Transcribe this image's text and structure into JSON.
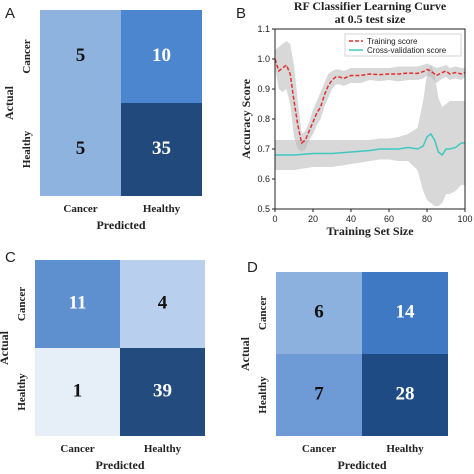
{
  "chart_data": [
    {
      "panel": "A",
      "type": "heatmap",
      "row_labels": [
        "Cancer",
        "Healthy"
      ],
      "col_labels": [
        "Cancer",
        "Healthy"
      ],
      "values": [
        [
          5,
          10
        ],
        [
          5,
          35
        ]
      ],
      "xlabel": "Predicted",
      "ylabel": "Actual",
      "colors": [
        [
          "#8fb3df",
          "#4c86cf"
        ],
        [
          "#8fb3df",
          "#22497c"
        ]
      ]
    },
    {
      "panel": "B",
      "type": "line",
      "title_line1": "RF Classifier Learning Curve",
      "title_line2": "at 0.5 test size",
      "xlabel": "Training Set Size",
      "ylabel": "Accuracy Score",
      "xlim": [
        0,
        100
      ],
      "ylim": [
        0.5,
        1.1
      ],
      "xticks": [
        "0",
        "20",
        "40",
        "60",
        "80",
        "100"
      ],
      "yticks": [
        "0.5",
        "0.6",
        "0.7",
        "0.8",
        "0.9",
        "1.0",
        "1.1"
      ],
      "legend_position": "top-right",
      "series": [
        {
          "name": "Training score",
          "color": "#e03030",
          "style": "dashed",
          "x": [
            0,
            2,
            4,
            6,
            8,
            10,
            12,
            14,
            16,
            18,
            20,
            22,
            24,
            26,
            28,
            30,
            32,
            34,
            36,
            38,
            40,
            45,
            50,
            55,
            60,
            65,
            70,
            75,
            78,
            80,
            82,
            85,
            88,
            90,
            92,
            95,
            98,
            100
          ],
          "y": [
            1.0,
            0.96,
            0.97,
            0.98,
            0.95,
            0.86,
            0.78,
            0.72,
            0.73,
            0.76,
            0.79,
            0.82,
            0.84,
            0.88,
            0.91,
            0.93,
            0.94,
            0.94,
            0.935,
            0.94,
            0.945,
            0.945,
            0.95,
            0.948,
            0.95,
            0.95,
            0.953,
            0.952,
            0.958,
            0.965,
            0.96,
            0.945,
            0.955,
            0.96,
            0.95,
            0.955,
            0.95,
            0.955
          ],
          "band_upper": [
            1.03,
            1.04,
            1.05,
            1.06,
            1.05,
            0.98,
            0.86,
            0.75,
            0.76,
            0.79,
            0.83,
            0.86,
            0.89,
            0.92,
            0.95,
            0.96,
            0.965,
            0.965,
            0.96,
            0.965,
            0.97,
            0.97,
            0.97,
            0.97,
            0.97,
            0.975,
            0.975,
            0.975,
            0.98,
            0.985,
            0.98,
            0.97,
            0.975,
            0.98,
            0.97,
            0.975,
            0.97,
            0.97
          ],
          "band_lower": [
            0.97,
            0.9,
            0.89,
            0.9,
            0.85,
            0.74,
            0.7,
            0.69,
            0.7,
            0.73,
            0.75,
            0.78,
            0.8,
            0.84,
            0.87,
            0.9,
            0.915,
            0.915,
            0.91,
            0.915,
            0.92,
            0.92,
            0.93,
            0.926,
            0.93,
            0.925,
            0.93,
            0.93,
            0.935,
            0.945,
            0.94,
            0.92,
            0.935,
            0.94,
            0.93,
            0.935,
            0.93,
            0.94
          ]
        },
        {
          "name": "Cross-validation score",
          "color": "#40c8c0",
          "style": "solid",
          "x": [
            0,
            10,
            20,
            30,
            40,
            50,
            55,
            60,
            65,
            70,
            75,
            78,
            80,
            82,
            84,
            86,
            88,
            90,
            92,
            95,
            98,
            100
          ],
          "y": [
            0.68,
            0.68,
            0.685,
            0.685,
            0.69,
            0.695,
            0.7,
            0.7,
            0.7,
            0.705,
            0.7,
            0.71,
            0.74,
            0.75,
            0.73,
            0.69,
            0.68,
            0.7,
            0.7,
            0.705,
            0.72,
            0.72
          ],
          "band_upper": [
            0.73,
            0.73,
            0.73,
            0.73,
            0.73,
            0.73,
            0.735,
            0.735,
            0.74,
            0.75,
            0.77,
            0.86,
            0.95,
            0.98,
            0.95,
            0.87,
            0.84,
            0.85,
            0.86,
            0.86,
            0.86,
            0.86
          ],
          "band_lower": [
            0.63,
            0.63,
            0.64,
            0.64,
            0.65,
            0.66,
            0.665,
            0.665,
            0.66,
            0.66,
            0.63,
            0.56,
            0.53,
            0.52,
            0.51,
            0.51,
            0.52,
            0.55,
            0.55,
            0.56,
            0.58,
            0.58
          ]
        }
      ]
    },
    {
      "panel": "C",
      "type": "heatmap",
      "row_labels": [
        "Cancer",
        "Healthy"
      ],
      "col_labels": [
        "Cancer",
        "Healthy"
      ],
      "values": [
        [
          11,
          4
        ],
        [
          1,
          39
        ]
      ],
      "xlabel": "Predicted",
      "ylabel": "Actual",
      "colors": [
        [
          "#5e8fcf",
          "#b8d0ee"
        ],
        [
          "#e6eef8",
          "#234b7e"
        ]
      ]
    },
    {
      "panel": "D",
      "type": "heatmap",
      "row_labels": [
        "Cancer",
        "Healthy"
      ],
      "col_labels": [
        "Cancer",
        "Healthy"
      ],
      "values": [
        [
          6,
          14
        ],
        [
          7,
          28
        ]
      ],
      "xlabel": "Predicted",
      "ylabel": "Actual",
      "colors": [
        [
          "#8db1de",
          "#3f79c4"
        ],
        [
          "#6e9ad6",
          "#1f4b85"
        ]
      ]
    }
  ]
}
